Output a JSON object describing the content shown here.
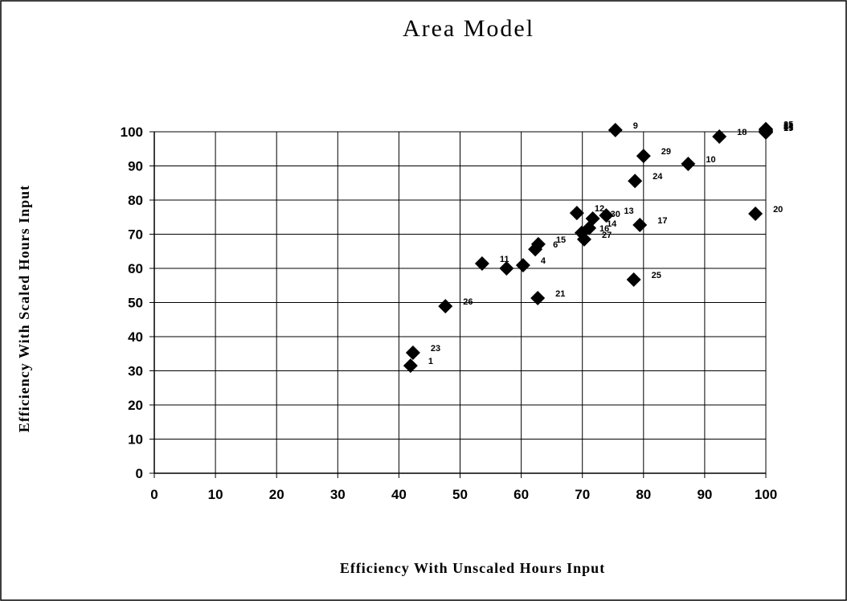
{
  "chart_data": {
    "type": "scatter",
    "title": "Area Model",
    "xlabel": "Efficiency With Unscaled Hours Input",
    "ylabel": "Efficiency With Scaled Hours Input",
    "x": [
      75.4,
      100,
      100,
      100,
      100,
      100,
      92.4,
      80.0,
      87.3,
      78.6,
      69.1,
      98.3,
      79.4,
      73.9,
      71.7,
      69.9,
      71.1,
      70.3,
      62.8,
      62.3,
      53.6,
      57.6,
      60.3,
      62.7,
      78.4,
      47.6,
      42.3,
      41.9
    ],
    "y": [
      100.5,
      100.8,
      100.5,
      100.2,
      99.8,
      100,
      98.6,
      92.9,
      90.6,
      85.6,
      76.2,
      76.0,
      72.7,
      75.5,
      74.6,
      70.4,
      71.8,
      68.5,
      67.1,
      65.6,
      61.4,
      60.0,
      60.9,
      51.3,
      56.7,
      48.9,
      35.3,
      31.5
    ],
    "labels": [
      "9",
      "35",
      "22",
      "8",
      "19",
      "31",
      "18",
      "29",
      "10",
      "24",
      "12",
      "20",
      "17",
      "13",
      "30",
      "16",
      "14",
      "27",
      "15",
      "6",
      "11",
      null,
      "4",
      "21",
      "25",
      "26",
      "23",
      "1"
    ],
    "color": "#000000",
    "marker": "diamond",
    "grid": true,
    "xlim": [
      0,
      100
    ],
    "xticks": [
      0,
      10,
      20,
      30,
      40,
      50,
      60,
      70,
      80,
      90,
      100
    ],
    "ylim": [
      0,
      100
    ],
    "yticks": [
      0,
      10,
      20,
      30,
      40,
      50,
      60,
      70,
      80,
      90,
      100
    ]
  }
}
